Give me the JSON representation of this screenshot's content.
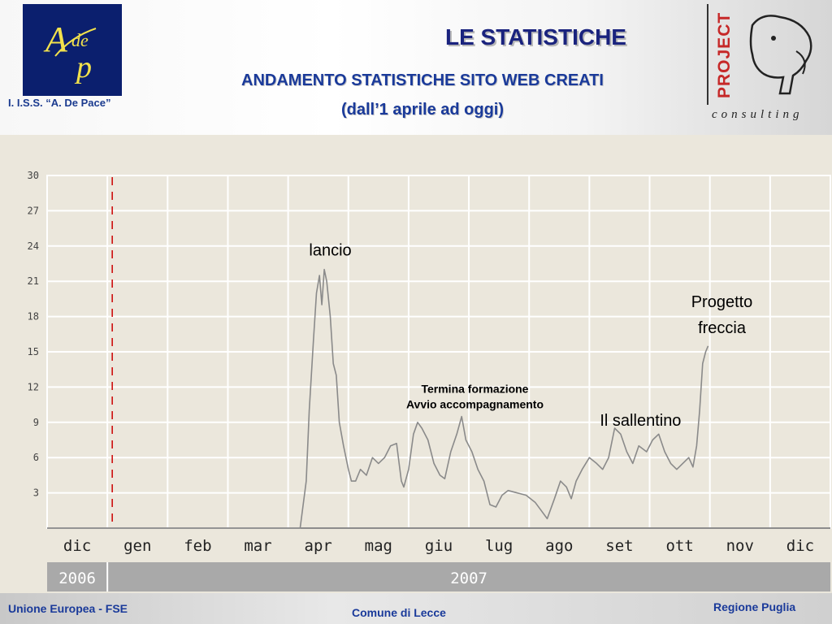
{
  "header": {
    "school_label": "I. I.S.S. “A. De Pace”",
    "title": "LE STATISTICHE",
    "subtitle_line1": "ANDAMENTO STATISTICHE SITO WEB CREATI",
    "subtitle_line2": "(dall’1 aprile ad oggi)",
    "logo_left_text": "Adep",
    "logo_right_word": "PROJECT",
    "logo_right_sub": "consulting"
  },
  "footer": {
    "left": "Unione Europea - FSE",
    "center": "Comune di Lecce",
    "right": "Regione Puglia"
  },
  "colors": {
    "line": "#8a8a8a",
    "grid": "#ffffff",
    "plot_bg": "#ebe7dc",
    "year_bar": "#a9a9a9",
    "marker": "#cc0000",
    "title": "#1a237e",
    "subtitle": "#1a3a9a"
  },
  "chart_data": {
    "type": "line",
    "ylim": [
      0,
      30
    ],
    "y_ticks": [
      "3",
      "6",
      "9",
      "12",
      "15",
      "18",
      "21",
      "24",
      "27",
      "30"
    ],
    "y_tick_values": [
      3,
      6,
      9,
      12,
      15,
      18,
      21,
      24,
      27,
      30
    ],
    "x_ticks": [
      "dic",
      "gen",
      "feb",
      "mar",
      "apr",
      "mag",
      "giu",
      "lug",
      "ago",
      "set",
      "ott",
      "nov",
      "dic"
    ],
    "years": [
      {
        "label": "2006",
        "from_month": 0,
        "to_month": 1
      },
      {
        "label": "2007",
        "from_month": 1,
        "to_month": 13
      }
    ],
    "marker_line_month": 1.0,
    "grid": true,
    "series": [
      {
        "points": [
          [
            0.0,
            0
          ],
          [
            1.0,
            0
          ],
          [
            2.0,
            0
          ],
          [
            3.0,
            0
          ],
          [
            4.0,
            0
          ],
          [
            4.2,
            0
          ],
          [
            4.3,
            4
          ],
          [
            4.35,
            10
          ],
          [
            4.42,
            16
          ],
          [
            4.47,
            20
          ],
          [
            4.52,
            21.5
          ],
          [
            4.56,
            19
          ],
          [
            4.6,
            22
          ],
          [
            4.64,
            21
          ],
          [
            4.7,
            18
          ],
          [
            4.75,
            14
          ],
          [
            4.8,
            13
          ],
          [
            4.85,
            9
          ],
          [
            4.92,
            7
          ],
          [
            5.0,
            5
          ],
          [
            5.05,
            4
          ],
          [
            5.12,
            4
          ],
          [
            5.2,
            5
          ],
          [
            5.3,
            4.5
          ],
          [
            5.4,
            6
          ],
          [
            5.5,
            5.5
          ],
          [
            5.6,
            6
          ],
          [
            5.7,
            7
          ],
          [
            5.8,
            7.2
          ],
          [
            5.88,
            4
          ],
          [
            5.92,
            3.5
          ],
          [
            6.0,
            5
          ],
          [
            6.08,
            8
          ],
          [
            6.15,
            9
          ],
          [
            6.22,
            8.5
          ],
          [
            6.32,
            7.5
          ],
          [
            6.42,
            5.5
          ],
          [
            6.52,
            4.5
          ],
          [
            6.6,
            4.2
          ],
          [
            6.7,
            6.5
          ],
          [
            6.8,
            8
          ],
          [
            6.88,
            9.5
          ],
          [
            6.95,
            7.5
          ],
          [
            7.05,
            6.5
          ],
          [
            7.15,
            5
          ],
          [
            7.25,
            4
          ],
          [
            7.35,
            2
          ],
          [
            7.45,
            1.8
          ],
          [
            7.55,
            2.8
          ],
          [
            7.65,
            3.2
          ],
          [
            7.8,
            3
          ],
          [
            7.95,
            2.8
          ],
          [
            8.1,
            2.2
          ],
          [
            8.2,
            1.5
          ],
          [
            8.3,
            0.8
          ],
          [
            8.42,
            2.5
          ],
          [
            8.52,
            4
          ],
          [
            8.62,
            3.5
          ],
          [
            8.7,
            2.5
          ],
          [
            8.78,
            4
          ],
          [
            8.88,
            5
          ],
          [
            9.0,
            6
          ],
          [
            9.12,
            5.5
          ],
          [
            9.22,
            5
          ],
          [
            9.32,
            6
          ],
          [
            9.42,
            8.5
          ],
          [
            9.52,
            8
          ],
          [
            9.62,
            6.5
          ],
          [
            9.72,
            5.5
          ],
          [
            9.82,
            7
          ],
          [
            9.95,
            6.5
          ],
          [
            10.05,
            7.5
          ],
          [
            10.15,
            8
          ],
          [
            10.25,
            6.5
          ],
          [
            10.35,
            5.5
          ],
          [
            10.45,
            5
          ],
          [
            10.55,
            5.5
          ],
          [
            10.65,
            6
          ],
          [
            10.72,
            5.2
          ],
          [
            10.78,
            7
          ],
          [
            10.83,
            10
          ],
          [
            10.88,
            14
          ],
          [
            10.93,
            15
          ],
          [
            10.97,
            15.5
          ]
        ]
      }
    ],
    "annotations": [
      {
        "text": "lancio",
        "month": 4.7,
        "y": 23.2,
        "size": 20
      },
      {
        "text": "Termina formazione",
        "month": 7.1,
        "y": 11.5,
        "size": 14
      },
      {
        "text": "Avvio accompagnamento",
        "month": 7.1,
        "y": 10.2,
        "size": 14
      },
      {
        "text": "Il sallentino",
        "month": 9.85,
        "y": 8.7,
        "size": 20
      },
      {
        "text": "Progetto",
        "month": 11.2,
        "y": 18.8,
        "size": 20
      },
      {
        "text": "freccia",
        "month": 11.2,
        "y": 16.6,
        "size": 20
      }
    ]
  }
}
